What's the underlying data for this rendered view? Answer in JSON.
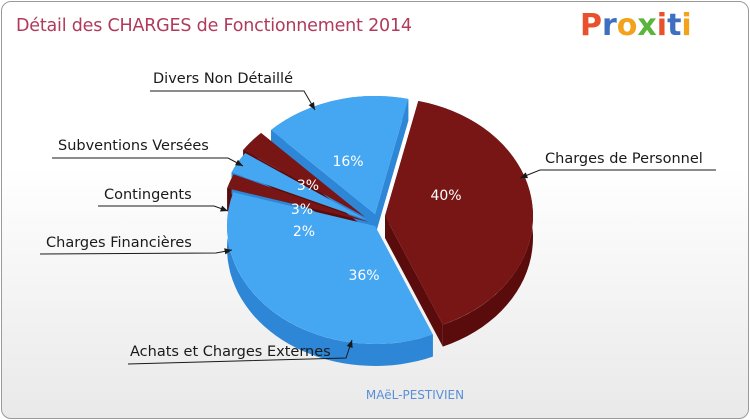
{
  "title": "Détail des CHARGES de Fonctionnement 2014",
  "logo": {
    "letters": [
      "P",
      "r",
      "o",
      "x",
      "i",
      "t",
      "i"
    ],
    "colors": [
      "#e8512b",
      "#3f6fc0",
      "#f2a21b",
      "#5bb53b",
      "#e8512b",
      "#3f6fc0",
      "#f2a21b"
    ]
  },
  "footer": "MAëL-PESTIVIEN",
  "colors": {
    "red_top": "#781515",
    "red_side": "#5a0c0c",
    "blue_top": "#45a7f2",
    "blue_side": "#2d86d6"
  },
  "chart_data": {
    "type": "pie",
    "title": "Détail des CHARGES de Fonctionnement 2014",
    "slices": [
      {
        "label": "Charges de Personnel",
        "value": 40,
        "value_label": "40%",
        "color": "red"
      },
      {
        "label": "Achats et Charges Externes",
        "value": 36,
        "value_label": "36%",
        "color": "blue"
      },
      {
        "label": "Charges Financières",
        "value": 2,
        "value_label": "2%",
        "color": "red"
      },
      {
        "label": "Contingents",
        "value": 3,
        "value_label": "3%",
        "color": "blue"
      },
      {
        "label": "Subventions Versées",
        "value": 3,
        "value_label": "3%",
        "color": "red"
      },
      {
        "label": "Divers Non Détaillé",
        "value": 16,
        "value_label": "16%",
        "color": "blue"
      }
    ]
  }
}
